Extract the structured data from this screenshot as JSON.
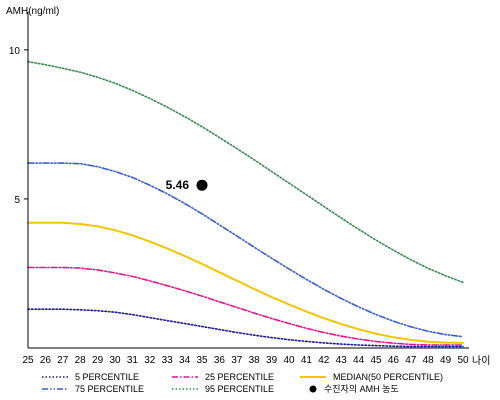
{
  "chart_data": {
    "type": "line",
    "ylabel": "AMH(ng/ml)",
    "xlabel": "나이",
    "x": [
      25,
      26,
      27,
      28,
      29,
      30,
      31,
      32,
      33,
      34,
      35,
      36,
      37,
      38,
      39,
      40,
      41,
      42,
      43,
      44,
      45,
      46,
      47,
      48,
      49,
      50
    ],
    "xlim": [
      25,
      50
    ],
    "ylim": [
      0,
      11
    ],
    "yticks": [
      5,
      10
    ],
    "grid": false,
    "legend_position": "bottom",
    "series": [
      {
        "name": "5 PERCENTILE",
        "color": "#1a1a8c",
        "style": "dotted",
        "values": [
          1.3,
          1.3,
          1.3,
          1.28,
          1.25,
          1.2,
          1.12,
          1.02,
          0.92,
          0.82,
          0.72,
          0.62,
          0.52,
          0.43,
          0.35,
          0.28,
          0.22,
          0.17,
          0.13,
          0.1,
          0.08,
          0.06,
          0.05,
          0.05,
          0.05,
          0.05
        ]
      },
      {
        "name": "25 PERCENTILE",
        "color": "#e0178c",
        "style": "dashdot",
        "values": [
          2.7,
          2.7,
          2.7,
          2.68,
          2.62,
          2.52,
          2.4,
          2.25,
          2.09,
          1.92,
          1.74,
          1.55,
          1.36,
          1.17,
          0.99,
          0.82,
          0.66,
          0.52,
          0.4,
          0.3,
          0.22,
          0.16,
          0.12,
          0.1,
          0.1,
          0.1
        ]
      },
      {
        "name": "MEDIAN(50 PERCENTILE)",
        "color": "#f2c500",
        "style": "solid",
        "values": [
          4.2,
          4.2,
          4.2,
          4.16,
          4.08,
          3.95,
          3.78,
          3.57,
          3.34,
          3.09,
          2.82,
          2.54,
          2.26,
          1.98,
          1.71,
          1.46,
          1.22,
          1.0,
          0.8,
          0.63,
          0.48,
          0.36,
          0.27,
          0.21,
          0.18,
          0.17
        ]
      },
      {
        "name": "75 PERCENTILE",
        "color": "#3d5ec9",
        "style": "dashdotdot",
        "values": [
          6.2,
          6.2,
          6.2,
          6.18,
          6.08,
          5.92,
          5.72,
          5.46,
          5.17,
          4.85,
          4.5,
          4.13,
          3.76,
          3.38,
          3.01,
          2.65,
          2.3,
          1.97,
          1.66,
          1.38,
          1.12,
          0.9,
          0.71,
          0.56,
          0.45,
          0.38
        ]
      },
      {
        "name": "95 PERCENTILE",
        "color": "#3a8a55",
        "style": "dotted",
        "values": [
          9.6,
          9.5,
          9.38,
          9.25,
          9.08,
          8.88,
          8.64,
          8.37,
          8.08,
          7.76,
          7.42,
          7.06,
          6.69,
          6.31,
          5.92,
          5.53,
          5.14,
          4.75,
          4.36,
          3.98,
          3.62,
          3.28,
          2.96,
          2.67,
          2.42,
          2.2
        ]
      }
    ],
    "highlight_point": {
      "name": "수진자의 AMH 농도",
      "x": 35,
      "y": 5.46,
      "label": "5.46",
      "color": "#000000"
    }
  }
}
